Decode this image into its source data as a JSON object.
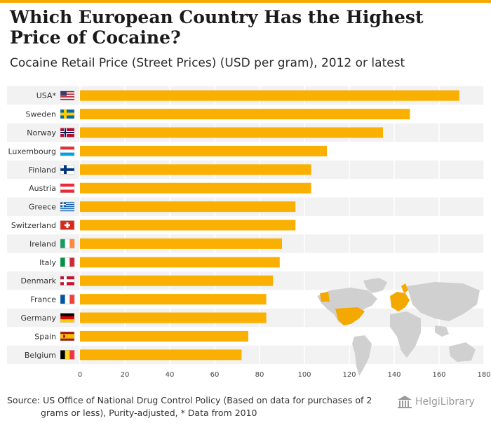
{
  "header": {
    "title": "Which European Country Has the Highest Price of Cocaine?",
    "subtitle": "Cocaine Retail Price (Street Prices) (USD per gram), 2012 or latest"
  },
  "footer": {
    "source_line1": "Source: US Office of National Drug Control Policy (Based on data for purchases of 2",
    "source_line2": "grams or less), Purity-adjusted, * Data from 2010",
    "logo_text": "HelgiLibrary"
  },
  "colors": {
    "bar": "#fab000",
    "accent": "#f4a900",
    "band": "#f2f2f2",
    "map_land": "#d0d0d0",
    "map_highlight": "#f4a900"
  },
  "chart_data": {
    "type": "bar",
    "orientation": "horizontal",
    "title": "Cocaine Retail Price (Street Prices) (USD per gram), 2012 or latest",
    "xlabel": "",
    "ylabel": "",
    "xlim": [
      0,
      180
    ],
    "xticks": [
      0,
      20,
      40,
      60,
      80,
      100,
      120,
      140,
      160,
      180
    ],
    "grid": true,
    "categories": [
      "USA*",
      "Sweden",
      "Norway",
      "Luxembourg",
      "Finland",
      "Austria",
      "Greece",
      "Switzerland",
      "Ireland",
      "Italy",
      "Denmark",
      "France",
      "Germany",
      "Spain",
      "Belgium"
    ],
    "values": [
      169,
      147,
      135,
      110,
      103,
      103,
      96,
      96,
      90,
      89,
      86,
      83,
      83,
      75,
      72
    ],
    "flags": [
      "us-flag",
      "sweden-flag",
      "norway-flag",
      "luxembourg-flag",
      "finland-flag",
      "austria-flag",
      "greece-flag",
      "switzerland-flag",
      "ireland-flag",
      "italy-flag",
      "denmark-flag",
      "france-flag",
      "germany-flag",
      "spain-flag",
      "belgium-flag"
    ]
  }
}
